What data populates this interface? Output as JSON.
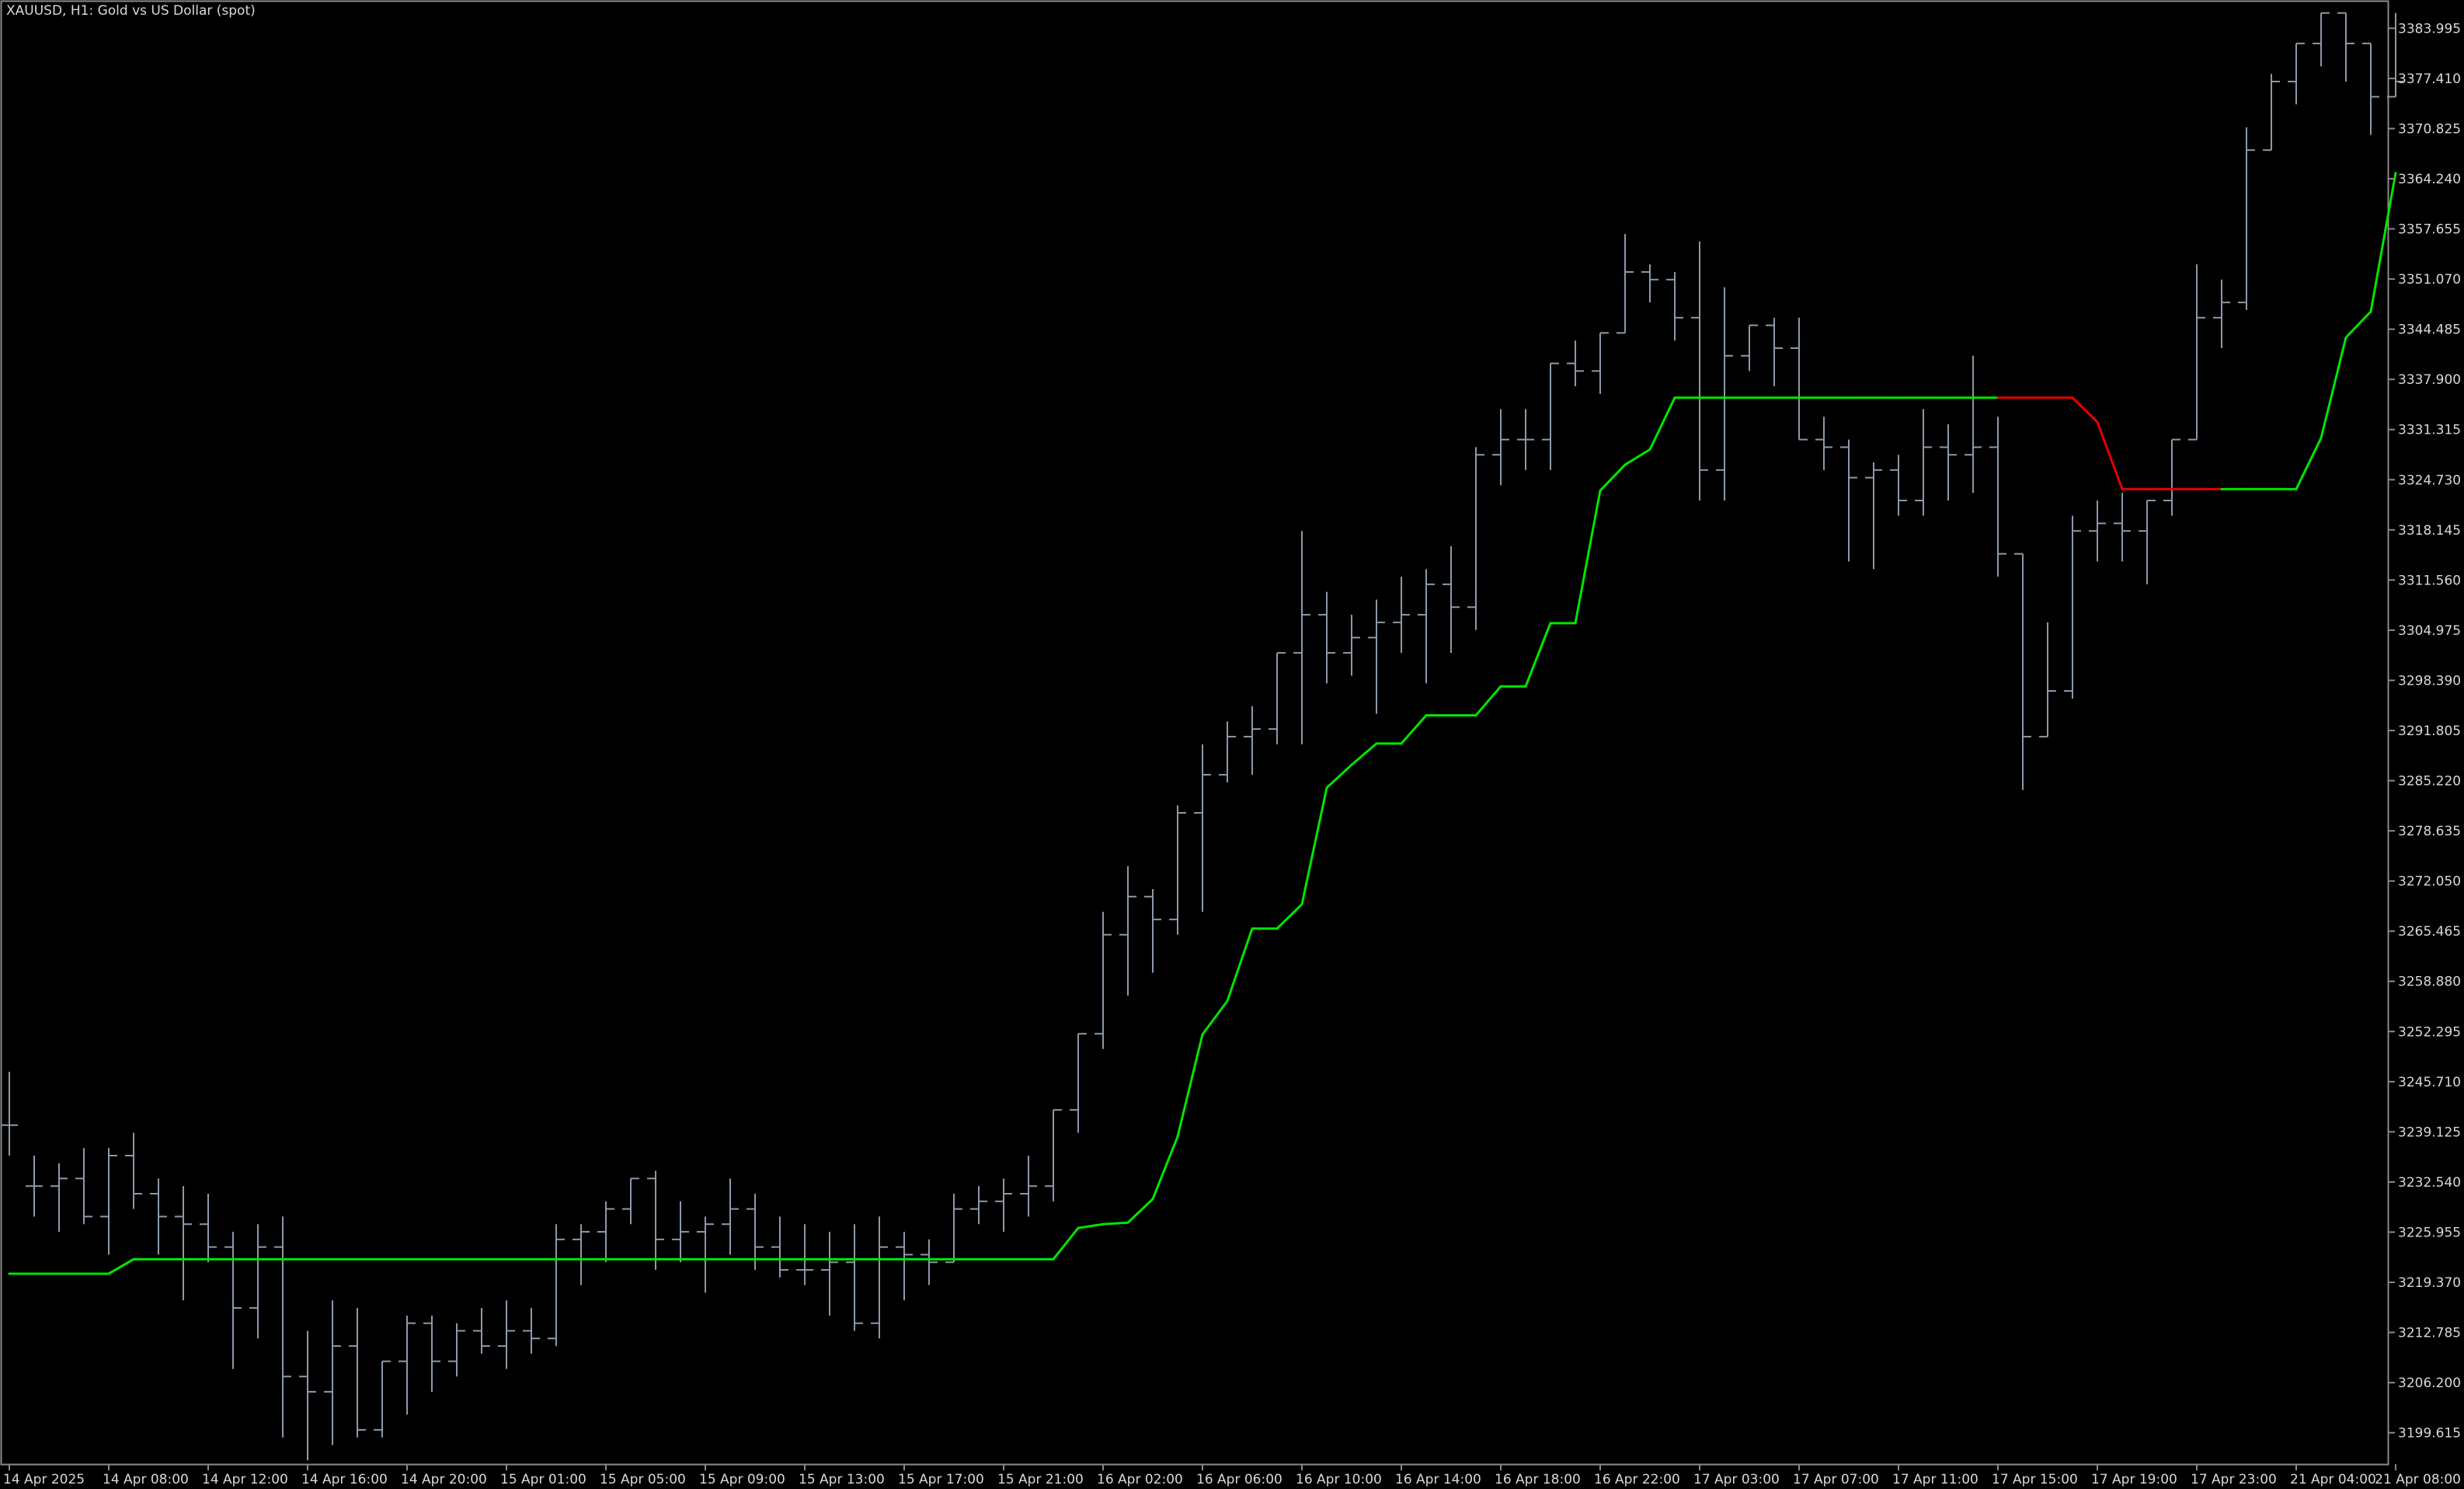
{
  "window": {
    "title": "XAUUSD, H1:  Gold vs US Dollar (spot)"
  },
  "colors": {
    "background": "#000000",
    "bars": "#8c99ab",
    "axis_text": "#d8d8d8",
    "indicator_up": "#00e600",
    "indicator_down": "#e60000",
    "frame": "#8a8a8a"
  },
  "chart_data": {
    "type": "ohlc",
    "symbol": "XAUUSD",
    "timeframe": "H1",
    "title": "XAUUSD, H1:  Gold vs US Dollar (spot)",
    "xlabel": "",
    "ylabel": "",
    "ylim": [
      3195.5,
      3387.5
    ],
    "grid": false,
    "y_ticks": [
      "3383.995",
      "3377.410",
      "3370.825",
      "3364.240",
      "3357.655",
      "3351.070",
      "3344.485",
      "3337.900",
      "3331.315",
      "3324.730",
      "3318.145",
      "3311.560",
      "3304.975",
      "3298.390",
      "3291.805",
      "3285.220",
      "3278.635",
      "3272.050",
      "3265.465",
      "3258.880",
      "3252.295",
      "3245.710",
      "3239.125",
      "3232.540",
      "3225.955",
      "3219.370",
      "3212.785",
      "3206.200",
      "3199.615"
    ],
    "x_labels": [
      {
        "i": 0,
        "label": "14 Apr 2025"
      },
      {
        "i": 4,
        "label": "14 Apr 08:00"
      },
      {
        "i": 8,
        "label": "14 Apr 12:00"
      },
      {
        "i": 12,
        "label": "14 Apr 16:00"
      },
      {
        "i": 16,
        "label": "14 Apr 20:00"
      },
      {
        "i": 20,
        "label": "15 Apr 01:00"
      },
      {
        "i": 24,
        "label": "15 Apr 05:00"
      },
      {
        "i": 28,
        "label": "15 Apr 09:00"
      },
      {
        "i": 32,
        "label": "15 Apr 13:00"
      },
      {
        "i": 36,
        "label": "15 Apr 17:00"
      },
      {
        "i": 40,
        "label": "15 Apr 21:00"
      },
      {
        "i": 44,
        "label": "16 Apr 02:00"
      },
      {
        "i": 48,
        "label": "16 Apr 06:00"
      },
      {
        "i": 52,
        "label": "16 Apr 10:00"
      },
      {
        "i": 56,
        "label": "16 Apr 14:00"
      },
      {
        "i": 60,
        "label": "16 Apr 18:00"
      },
      {
        "i": 64,
        "label": "16 Apr 22:00"
      },
      {
        "i": 68,
        "label": "17 Apr 03:00"
      },
      {
        "i": 72,
        "label": "17 Apr 07:00"
      },
      {
        "i": 76,
        "label": "17 Apr 11:00"
      },
      {
        "i": 80,
        "label": "17 Apr 15:00"
      },
      {
        "i": 84,
        "label": "17 Apr 19:00"
      },
      {
        "i": 88,
        "label": "17 Apr 23:00"
      },
      {
        "i": 92,
        "label": "21 Apr 04:00"
      },
      {
        "i": 96,
        "label": "21 Apr 08:00"
      }
    ],
    "bars": [
      [
        3240.0,
        3247.0,
        3236.0,
        3240.0
      ],
      [
        3232.0,
        3236.0,
        3228.0,
        3232.0
      ],
      [
        3232.0,
        3235.0,
        3226.0,
        3233.0
      ],
      [
        3233.0,
        3237.0,
        3227.0,
        3228.0
      ],
      [
        3228.0,
        3237.0,
        3223.0,
        3236.0
      ],
      [
        3236.0,
        3239.0,
        3229.0,
        3231.0
      ],
      [
        3231.0,
        3233.0,
        3223.0,
        3228.0
      ],
      [
        3228.0,
        3232.0,
        3217.0,
        3227.0
      ],
      [
        3227.0,
        3231.0,
        3222.0,
        3224.0
      ],
      [
        3224.0,
        3226.0,
        3208.0,
        3216.0
      ],
      [
        3216.0,
        3227.0,
        3212.0,
        3224.0
      ],
      [
        3224.0,
        3228.0,
        3199.0,
        3207.0
      ],
      [
        3207.0,
        3213.0,
        3196.0,
        3205.0
      ],
      [
        3205.0,
        3217.0,
        3198.0,
        3211.0
      ],
      [
        3211.0,
        3216.0,
        3199.0,
        3200.0
      ],
      [
        3200.0,
        3209.0,
        3199.0,
        3209.0
      ],
      [
        3209.0,
        3215.0,
        3202.0,
        3214.0
      ],
      [
        3214.0,
        3215.0,
        3205.0,
        3209.0
      ],
      [
        3209.0,
        3214.0,
        3207.0,
        3213.0
      ],
      [
        3213.0,
        3216.0,
        3210.0,
        3211.0
      ],
      [
        3211.0,
        3217.0,
        3208.0,
        3213.0
      ],
      [
        3213.0,
        3216.0,
        3210.0,
        3212.0
      ],
      [
        3212.0,
        3227.0,
        3211.0,
        3225.0
      ],
      [
        3225.0,
        3227.0,
        3219.0,
        3226.0
      ],
      [
        3226.0,
        3230.0,
        3222.0,
        3229.0
      ],
      [
        3229.0,
        3233.0,
        3227.0,
        3233.0
      ],
      [
        3233.0,
        3234.0,
        3221.0,
        3225.0
      ],
      [
        3225.0,
        3230.0,
        3222.0,
        3226.0
      ],
      [
        3226.0,
        3228.0,
        3218.0,
        3227.0
      ],
      [
        3227.0,
        3233.0,
        3223.0,
        3229.0
      ],
      [
        3229.0,
        3231.0,
        3221.0,
        3224.0
      ],
      [
        3224.0,
        3228.0,
        3220.0,
        3221.0
      ],
      [
        3221.0,
        3227.0,
        3219.0,
        3221.0
      ],
      [
        3221.0,
        3226.0,
        3215.0,
        3222.0
      ],
      [
        3222.0,
        3227.0,
        3213.0,
        3214.0
      ],
      [
        3214.0,
        3228.0,
        3212.0,
        3224.0
      ],
      [
        3224.0,
        3226.0,
        3217.0,
        3223.0
      ],
      [
        3223.0,
        3225.0,
        3219.0,
        3222.0
      ],
      [
        3222.0,
        3231.0,
        3222.0,
        3229.0
      ],
      [
        3229.0,
        3232.0,
        3227.0,
        3230.0
      ],
      [
        3230.0,
        3233.0,
        3226.0,
        3231.0
      ],
      [
        3231.0,
        3236.0,
        3228.0,
        3232.0
      ],
      [
        3232.0,
        3242.0,
        3230.0,
        3242.0
      ],
      [
        3242.0,
        3252.0,
        3239.0,
        3252.0
      ],
      [
        3252.0,
        3268.0,
        3250.0,
        3265.0
      ],
      [
        3265.0,
        3274.0,
        3257.0,
        3270.0
      ],
      [
        3270.0,
        3271.0,
        3260.0,
        3267.0
      ],
      [
        3267.0,
        3282.0,
        3265.0,
        3281.0
      ],
      [
        3281.0,
        3290.0,
        3268.0,
        3286.0
      ],
      [
        3286.0,
        3293.0,
        3285.0,
        3291.0
      ],
      [
        3291.0,
        3295.0,
        3286.0,
        3292.0
      ],
      [
        3292.0,
        3302.0,
        3290.0,
        3302.0
      ],
      [
        3302.0,
        3318.0,
        3290.0,
        3307.0
      ],
      [
        3307.0,
        3310.0,
        3298.0,
        3302.0
      ],
      [
        3302.0,
        3307.0,
        3299.0,
        3304.0
      ],
      [
        3304.0,
        3309.0,
        3294.0,
        3306.0
      ],
      [
        3306.0,
        3312.0,
        3302.0,
        3307.0
      ],
      [
        3307.0,
        3313.0,
        3298.0,
        3311.0
      ],
      [
        3311.0,
        3316.0,
        3302.0,
        3308.0
      ],
      [
        3308.0,
        3329.0,
        3305.0,
        3328.0
      ],
      [
        3328.0,
        3334.0,
        3324.0,
        3330.0
      ],
      [
        3330.0,
        3334.0,
        3326.0,
        3330.0
      ],
      [
        3330.0,
        3334.0,
        3326.0,
        3340.0
      ],
      [
        3340.0,
        3343.0,
        3337.0,
        3339.0
      ],
      [
        3339.0,
        3344.0,
        3336.0,
        3344.0
      ],
      [
        3344.0,
        3357.0,
        3345.0,
        3352.0
      ],
      [
        3352.0,
        3353.0,
        3348.0,
        3351.0
      ],
      [
        3351.0,
        3352.0,
        3343.0,
        3346.0
      ],
      [
        3346.0,
        3356.0,
        3322.0,
        3326.0
      ],
      [
        3326.0,
        3350.0,
        3322.0,
        3341.0
      ],
      [
        3341.0,
        3344.0,
        3339.0,
        3345.0
      ],
      [
        3345.0,
        3346.0,
        3337.0,
        3342.0
      ],
      [
        3342.0,
        3346.0,
        3330.0,
        3330.0
      ],
      [
        3330.0,
        3333.0,
        3326.0,
        3329.0
      ],
      [
        3329.0,
        3330.0,
        3314.0,
        3325.0
      ],
      [
        3325.0,
        3327.0,
        3313.0,
        3326.0
      ],
      [
        3326.0,
        3328.0,
        3320.0,
        3322.0
      ],
      [
        3322.0,
        3334.0,
        3320.0,
        3329.0
      ],
      [
        3329.0,
        3332.0,
        3322.0,
        3328.0
      ],
      [
        3328.0,
        3341.0,
        3323.0,
        3329.0
      ],
      [
        3329.0,
        3333.0,
        3312.0,
        3315.0
      ],
      [
        3315.0,
        3315.0,
        3284.0,
        3291.0
      ],
      [
        3291.0,
        3306.0,
        3291.0,
        3297.0
      ],
      [
        3297.0,
        3320.0,
        3296.0,
        3318.0
      ],
      [
        3318.0,
        3322.0,
        3314.0,
        3319.0
      ],
      [
        3319.0,
        3323.0,
        3314.0,
        3318.0
      ],
      [
        3318.0,
        3322.0,
        3311.0,
        3322.0
      ],
      [
        3322.0,
        3330.0,
        3320.0,
        3330.0
      ],
      [
        3330.0,
        3353.0,
        3332.0,
        3346.0
      ],
      [
        3346.0,
        3351.0,
        3342.0,
        3348.0
      ],
      [
        3348.0,
        3371.0,
        3347.0,
        3368.0
      ],
      [
        3368.0,
        3378.0,
        3369.0,
        3377.0
      ],
      [
        3377.0,
        3380.0,
        3374.0,
        3382.0
      ],
      [
        3382.0,
        3386.0,
        3379.0,
        3386.0
      ],
      [
        3386.0,
        3384.0,
        3377.0,
        3382.0
      ],
      [
        3382.0,
        3382.0,
        3370.0,
        3375.0
      ],
      [
        3375.0,
        3386.0,
        3375.0,
        3377.0
      ]
    ],
    "indicator": {
      "type": "line",
      "values": [
        3220.5,
        3220.5,
        3220.5,
        3220.5,
        3220.5,
        3222.4,
        3222.4,
        3222.4,
        3222.4,
        3222.4,
        3222.4,
        3222.4,
        3222.4,
        3222.4,
        3222.4,
        3222.4,
        3222.4,
        3222.4,
        3222.4,
        3222.4,
        3222.4,
        3222.4,
        3222.4,
        3222.4,
        3222.4,
        3222.4,
        3222.4,
        3222.4,
        3222.4,
        3222.4,
        3222.4,
        3222.4,
        3222.4,
        3222.4,
        3222.4,
        3222.4,
        3222.4,
        3222.4,
        3222.4,
        3222.4,
        3222.4,
        3222.4,
        3222.4,
        3226.5,
        3227.0,
        3227.2,
        3230.3,
        3238.5,
        3251.9,
        3256.3,
        3265.8,
        3265.8,
        3269.0,
        3284.3,
        3287.3,
        3290.1,
        3290.1,
        3293.8,
        3293.8,
        3293.8,
        3297.6,
        3297.6,
        3305.9,
        3305.9,
        3323.3,
        3326.7,
        3328.7,
        3335.5,
        3335.5,
        3335.5,
        3335.5,
        3335.5,
        3335.5,
        3335.5,
        3335.5,
        3335.5,
        3335.5,
        3335.5,
        3335.5,
        3335.5,
        3335.5,
        3335.5,
        3335.5,
        3335.5,
        3332.3,
        3323.5,
        3323.5,
        3323.5,
        3323.5,
        3323.5,
        3323.5,
        3323.5,
        3323.5,
        3330.2,
        3343.4,
        3346.8,
        3365.0
      ],
      "down_segments": [
        [
          80,
          89
        ]
      ]
    }
  }
}
